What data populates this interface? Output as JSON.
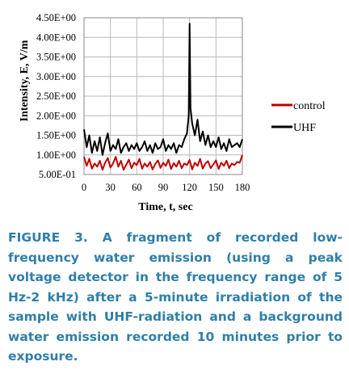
{
  "chart_data": {
    "type": "line",
    "title": "",
    "xlabel": "Time, t, sec",
    "ylabel": "Intensity, E, V/m",
    "xlim": [
      0,
      180
    ],
    "ylim": [
      0.5,
      4.5
    ],
    "x_ticks": [
      0,
      30,
      60,
      90,
      120,
      150,
      180
    ],
    "y_ticks": [
      0.5,
      1.0,
      1.5,
      2.0,
      2.5,
      3.0,
      3.5,
      4.0,
      4.5
    ],
    "y_tick_labels": [
      "5.00E-01",
      "1.00E+00",
      "1.50E+00",
      "2.00E+00",
      "2.50E+00",
      "3.00E+00",
      "3.50E+00",
      "4.00E+00",
      "4.50E+00"
    ],
    "grid": true,
    "legend_position": "right",
    "series": [
      {
        "name": "control",
        "color": "#c00000",
        "x": [
          0,
          3,
          6,
          9,
          12,
          15,
          18,
          21,
          24,
          27,
          30,
          33,
          36,
          39,
          42,
          45,
          48,
          51,
          54,
          57,
          60,
          63,
          66,
          69,
          72,
          75,
          78,
          81,
          84,
          87,
          90,
          93,
          96,
          99,
          102,
          105,
          108,
          111,
          114,
          117,
          120,
          123,
          126,
          129,
          132,
          135,
          138,
          141,
          144,
          147,
          150,
          153,
          156,
          159,
          162,
          165,
          168,
          171,
          174,
          177,
          180
        ],
        "values": [
          0.95,
          0.72,
          0.9,
          0.65,
          0.78,
          0.7,
          0.85,
          0.62,
          0.8,
          0.92,
          0.68,
          0.78,
          0.95,
          0.7,
          0.85,
          0.62,
          0.75,
          0.88,
          0.66,
          0.8,
          0.74,
          0.9,
          0.65,
          0.78,
          0.7,
          0.82,
          0.63,
          0.77,
          0.86,
          0.67,
          0.8,
          0.72,
          0.88,
          0.64,
          0.79,
          0.7,
          0.85,
          0.66,
          0.78,
          0.74,
          0.87,
          0.63,
          0.8,
          0.72,
          0.9,
          0.65,
          0.78,
          0.84,
          0.66,
          0.76,
          0.86,
          0.64,
          0.8,
          0.72,
          0.85,
          0.66,
          0.78,
          0.74,
          0.82,
          0.8,
          1.0
        ]
      },
      {
        "name": "UHF",
        "color": "#000000",
        "x": [
          0,
          3,
          6,
          9,
          12,
          15,
          18,
          21,
          24,
          27,
          30,
          33,
          36,
          39,
          42,
          45,
          48,
          51,
          54,
          57,
          60,
          63,
          66,
          69,
          72,
          75,
          78,
          81,
          84,
          87,
          90,
          93,
          96,
          99,
          102,
          105,
          108,
          111,
          114,
          117,
          119,
          120,
          121,
          123,
          126,
          129,
          132,
          135,
          138,
          141,
          144,
          147,
          150,
          153,
          156,
          159,
          162,
          165,
          168,
          171,
          174,
          177,
          180
        ],
        "values": [
          1.65,
          1.2,
          1.5,
          1.05,
          1.35,
          1.1,
          1.45,
          1.0,
          1.3,
          1.55,
          1.1,
          1.25,
          1.15,
          1.4,
          1.05,
          1.2,
          1.3,
          1.1,
          1.25,
          1.15,
          1.3,
          1.1,
          1.2,
          1.35,
          1.1,
          1.25,
          1.05,
          1.3,
          1.15,
          1.2,
          1.4,
          1.1,
          1.25,
          1.15,
          1.3,
          1.05,
          1.25,
          1.2,
          1.4,
          1.55,
          2.0,
          4.35,
          2.2,
          1.8,
          1.5,
          1.9,
          1.35,
          1.6,
          1.25,
          1.5,
          1.2,
          1.35,
          1.2,
          1.45,
          1.15,
          1.3,
          1.1,
          1.4,
          1.2,
          1.25,
          1.3,
          1.2,
          1.4
        ]
      }
    ]
  },
  "caption": "FIGURE 3. A fragment of recorded low-frequency water emission (using a peak voltage detector in the frequency range of 5 Hz-2 kHz) after a 5-minute irradiation of the sample with UHF-radiation and a background water emission recorded 10 minutes prior to exposure."
}
